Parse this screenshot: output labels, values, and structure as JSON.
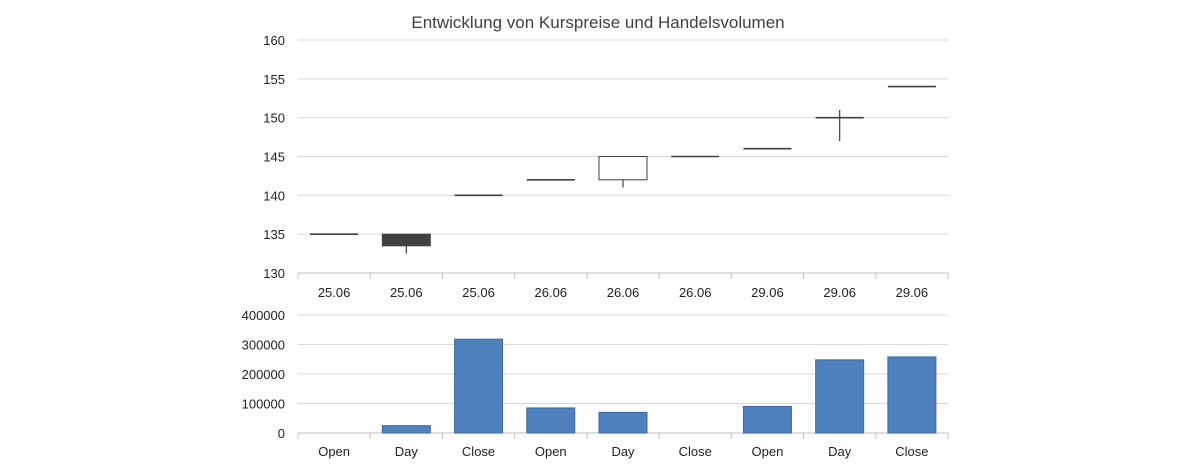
{
  "chart_data": {
    "title": "Entwicklung von Kurspreise und Handelsvolumen",
    "price_panel": {
      "type": "candlestick",
      "categories": [
        "25.06",
        "25.06",
        "25.06",
        "26.06",
        "26.06",
        "26.06",
        "29.06",
        "29.06",
        "29.06"
      ],
      "ylim": [
        130,
        160
      ],
      "yticks": [
        130,
        135,
        140,
        145,
        150,
        155,
        160
      ],
      "candles": [
        {
          "open": 135,
          "high": 135,
          "low": 135,
          "close": 135
        },
        {
          "open": 135,
          "high": 135,
          "low": 132.5,
          "close": 133.5
        },
        {
          "open": 140,
          "high": 140,
          "low": 140,
          "close": 140
        },
        {
          "open": 142,
          "high": 142,
          "low": 142,
          "close": 142
        },
        {
          "open": 142,
          "high": 145,
          "low": 141,
          "close": 145
        },
        {
          "open": 145,
          "high": 145,
          "low": 145,
          "close": 145
        },
        {
          "open": 146,
          "high": 146,
          "low": 146,
          "close": 146
        },
        {
          "open": 150,
          "high": 151,
          "low": 147,
          "close": 150
        },
        {
          "open": 154,
          "high": 154,
          "low": 154,
          "close": 154
        }
      ],
      "colors": {
        "up_fill": "#ffffff",
        "down_fill": "#404040",
        "line": "#404040"
      }
    },
    "volume_panel": {
      "type": "bar",
      "categories": [
        "Open",
        "Day",
        "Close",
        "Open",
        "Day",
        "Close",
        "Open",
        "Day",
        "Close"
      ],
      "values": [
        0,
        25000,
        318000,
        85000,
        70000,
        0,
        90000,
        248000,
        258000
      ],
      "ylim": [
        0,
        400000
      ],
      "yticks": [
        0,
        100000,
        200000,
        300000,
        400000
      ],
      "color": "#4f81bd",
      "border": "#3a6aa8"
    },
    "grid": true
  }
}
